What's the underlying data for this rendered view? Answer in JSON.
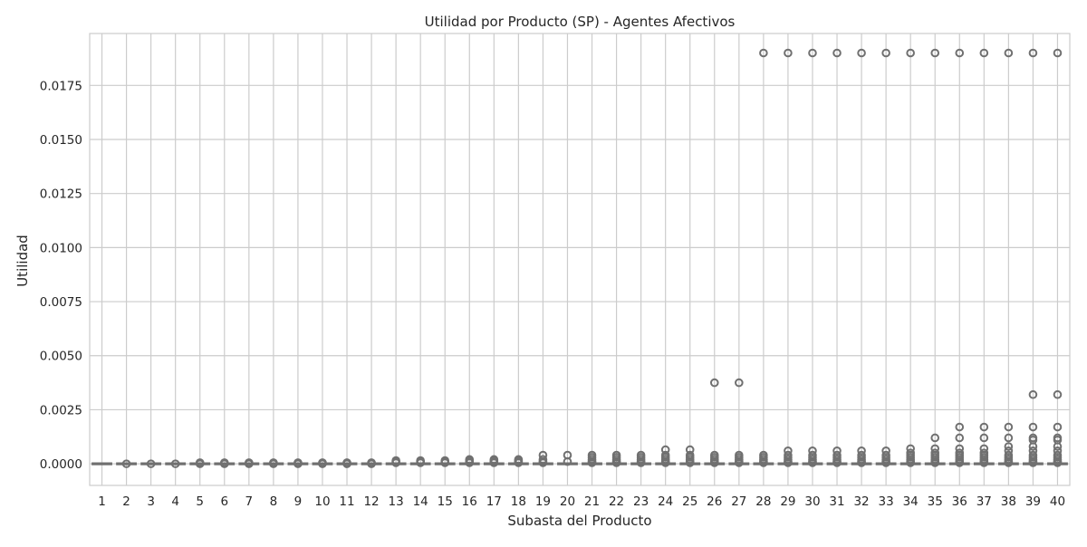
{
  "chart_data": {
    "type": "box",
    "title": "Utilidad por Producto (SP) - Agentes Afectivos",
    "xlabel": "Subasta del Producto",
    "ylabel": "Utilidad",
    "categories": [
      "1",
      "2",
      "3",
      "4",
      "5",
      "6",
      "7",
      "8",
      "9",
      "10",
      "11",
      "12",
      "13",
      "14",
      "15",
      "16",
      "17",
      "18",
      "19",
      "20",
      "21",
      "22",
      "23",
      "24",
      "25",
      "26",
      "27",
      "28",
      "29",
      "30",
      "31",
      "32",
      "33",
      "34",
      "35",
      "36",
      "37",
      "38",
      "39",
      "40"
    ],
    "y_ticks": [
      "0.0000",
      "0.0025",
      "0.0050",
      "0.0075",
      "0.0100",
      "0.0125",
      "0.0150",
      "0.0175"
    ],
    "ylim": [
      -0.001,
      0.0199
    ],
    "grid": true,
    "box_color": "#d9d9d9",
    "line_color": "#707070",
    "series": [
      {
        "values_summary": "box",
        "q3": [
          0,
          0,
          0,
          0,
          0,
          0,
          0,
          0,
          0,
          0,
          0,
          0,
          0,
          0,
          0,
          0,
          0,
          0,
          0,
          0,
          0,
          0,
          0,
          0,
          0,
          0,
          0,
          0,
          0,
          0,
          0,
          0,
          0,
          0,
          0,
          0,
          0,
          0,
          0,
          0
        ]
      },
      {
        "outliers": [
          [],
          [
            0.0
          ],
          [
            0.0
          ],
          [
            0.0
          ],
          [
            5e-05,
            0.0
          ],
          [
            5e-05,
            0.0
          ],
          [
            5e-05,
            0.0
          ],
          [
            5e-05,
            0.0
          ],
          [
            5e-05,
            0.0
          ],
          [
            5e-05,
            0.0
          ],
          [
            5e-05,
            0.0
          ],
          [
            5e-05,
            0.0
          ],
          [
            0.00015,
            0.0001,
            5e-05
          ],
          [
            0.00015,
            0.0001,
            5e-05
          ],
          [
            0.00015,
            0.0001,
            5e-05
          ],
          [
            0.0002,
            0.00015,
            0.0001,
            5e-05
          ],
          [
            0.0002,
            0.00015,
            0.0001,
            5e-05
          ],
          [
            0.0002,
            0.00015,
            0.0001,
            5e-05
          ],
          [
            0.0004,
            0.0002,
            0.0001,
            5e-05
          ],
          [
            0.0004,
            0.0001
          ],
          [
            0.0004,
            0.0003,
            0.0002,
            0.0001,
            5e-05
          ],
          [
            0.0004,
            0.0003,
            0.0002,
            0.0001,
            5e-05
          ],
          [
            0.0004,
            0.0003,
            0.0002,
            0.0001,
            5e-05
          ],
          [
            0.00065,
            0.0004,
            0.0003,
            0.0002,
            0.0001,
            5e-05
          ],
          [
            0.00065,
            0.0004,
            0.0003,
            0.0002,
            0.0001,
            5e-05
          ],
          [
            0.00375,
            0.0004,
            0.0003,
            0.0002,
            0.0001,
            5e-05
          ],
          [
            0.00375,
            0.0004,
            0.0003,
            0.0002,
            0.0001,
            5e-05
          ],
          [
            0.019,
            0.0004,
            0.0003,
            0.0002,
            0.0001,
            5e-05
          ],
          [
            0.019,
            0.0006,
            0.0004,
            0.0003,
            0.0002,
            0.0001,
            5e-05
          ],
          [
            0.019,
            0.0006,
            0.0004,
            0.0003,
            0.0002,
            0.0001,
            5e-05
          ],
          [
            0.019,
            0.0006,
            0.0004,
            0.0003,
            0.0002,
            0.0001,
            5e-05
          ],
          [
            0.019,
            0.0006,
            0.0004,
            0.0003,
            0.0002,
            0.0001,
            5e-05
          ],
          [
            0.019,
            0.0006,
            0.0004,
            0.0003,
            0.0002,
            0.0001,
            5e-05
          ],
          [
            0.019,
            0.0007,
            0.0005,
            0.0004,
            0.0003,
            0.0002,
            0.0001,
            5e-05
          ],
          [
            0.019,
            0.0012,
            0.0007,
            0.0005,
            0.0004,
            0.0003,
            0.0002,
            0.0001,
            5e-05
          ],
          [
            0.019,
            0.0017,
            0.0012,
            0.0007,
            0.0005,
            0.0004,
            0.0003,
            0.0002,
            0.0001,
            5e-05
          ],
          [
            0.019,
            0.0017,
            0.0012,
            0.0007,
            0.0005,
            0.0004,
            0.0003,
            0.0002,
            0.0001,
            5e-05
          ],
          [
            0.019,
            0.0017,
            0.0012,
            0.0008,
            0.0006,
            0.0004,
            0.0003,
            0.0002,
            0.0001,
            5e-05
          ],
          [
            0.019,
            0.0032,
            0.0017,
            0.0012,
            0.0011,
            0.0008,
            0.0006,
            0.0004,
            0.0003,
            0.0002,
            0.0001,
            5e-05
          ],
          [
            0.019,
            0.0032,
            0.0017,
            0.0012,
            0.0011,
            0.0008,
            0.0006,
            0.0004,
            0.0003,
            0.0002,
            0.0001,
            5e-05
          ]
        ]
      }
    ]
  }
}
